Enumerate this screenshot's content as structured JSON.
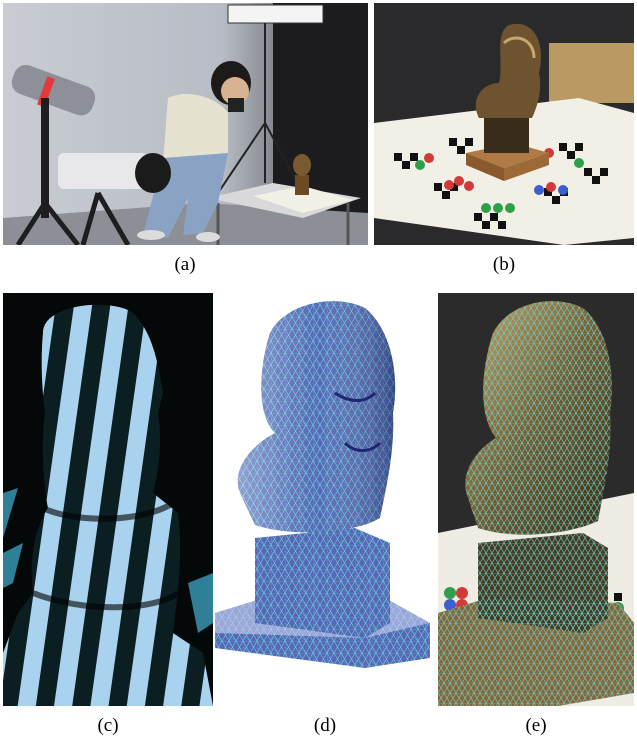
{
  "figure": {
    "panels": [
      {
        "label": "(a)"
      },
      {
        "label": "(b)"
      },
      {
        "label": "(c)"
      },
      {
        "label": "(d)"
      },
      {
        "label": "(e)"
      }
    ]
  },
  "colors": {
    "stripe_light": "#a9d2ee",
    "stripe_dark": "#0b1e22",
    "mesh_fill": "#5a64b8",
    "mesh_line": "#5fd8d0",
    "bronze": "#8a6a3a",
    "photo_bg": "#2a2a2a"
  }
}
